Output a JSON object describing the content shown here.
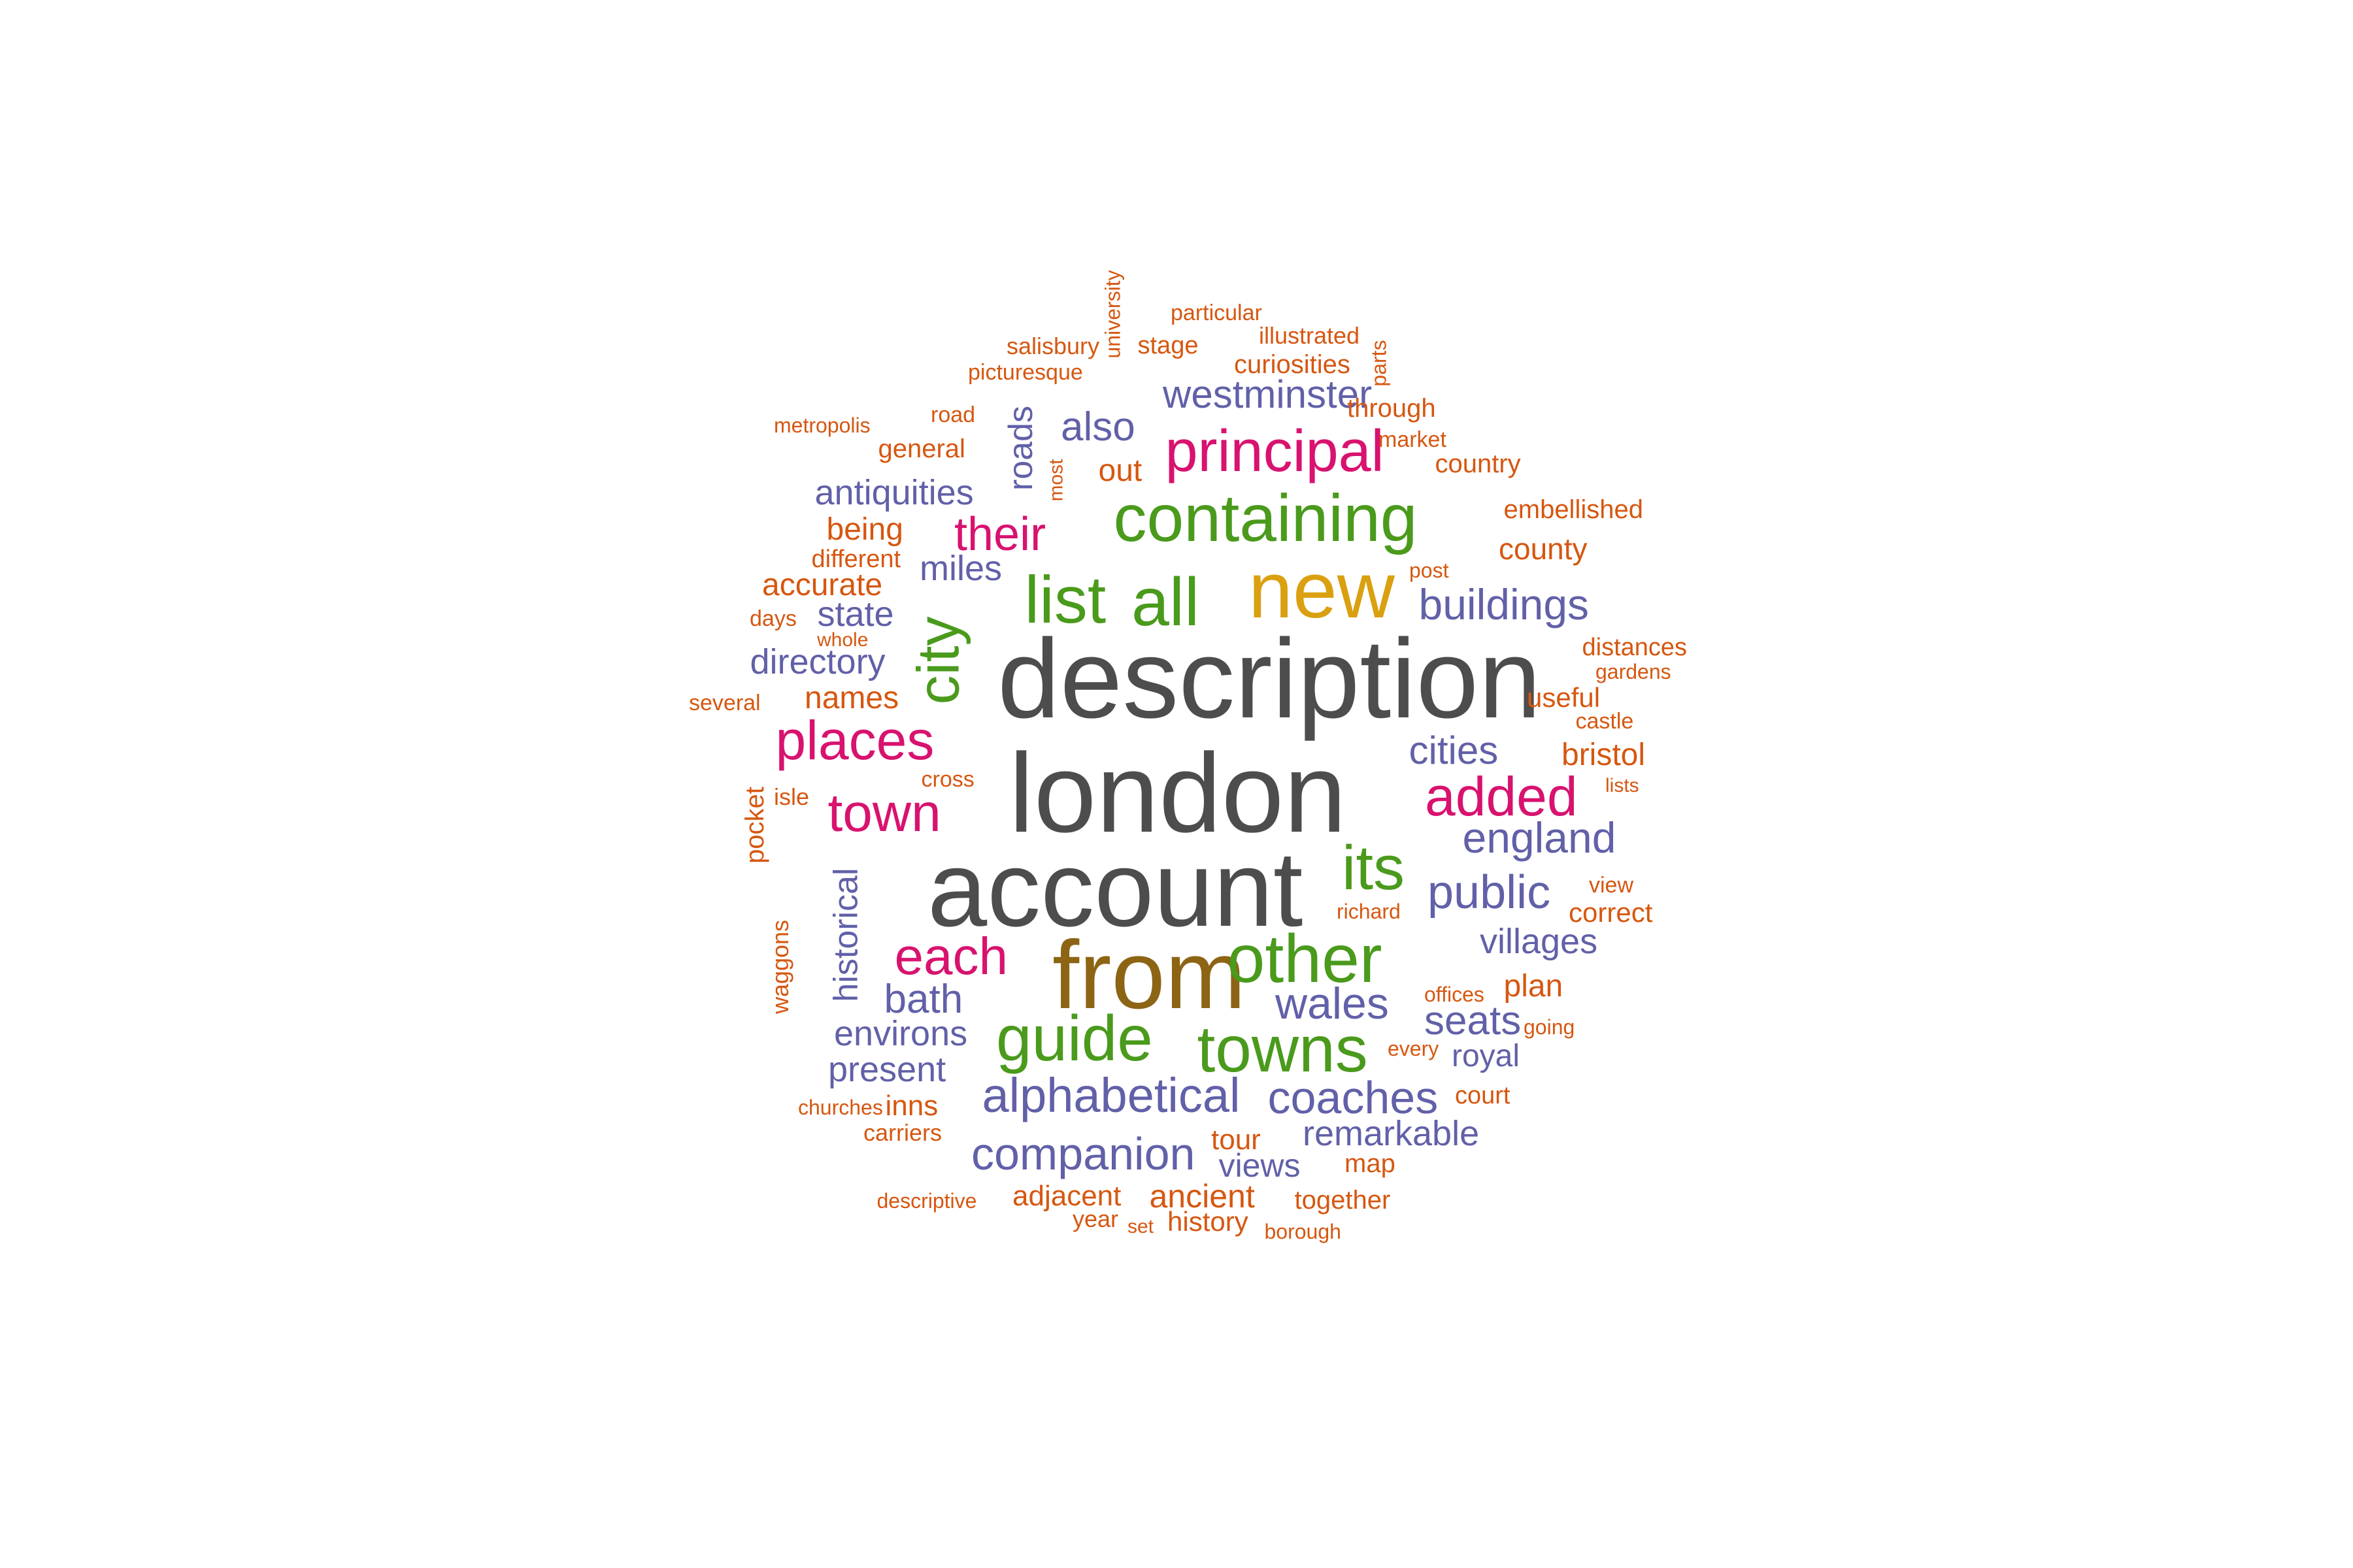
{
  "colors": {
    "gray": "#4d4d4d",
    "brown": "#8c6414",
    "gold": "#daa010",
    "green": "#4a9a1c",
    "magenta": "#d8126f",
    "purple": "#6160a8",
    "orange": "#d65710"
  },
  "words": [
    {
      "text": "description",
      "color": "gray"
    },
    {
      "text": "london",
      "color": "gray"
    },
    {
      "text": "account",
      "color": "gray"
    },
    {
      "text": "from",
      "color": "brown"
    },
    {
      "text": "new",
      "color": "gold"
    },
    {
      "text": "containing",
      "color": "green"
    },
    {
      "text": "list",
      "color": "green"
    },
    {
      "text": "all",
      "color": "green"
    },
    {
      "text": "city",
      "color": "green"
    },
    {
      "text": "its",
      "color": "green"
    },
    {
      "text": "other",
      "color": "green"
    },
    {
      "text": "guide",
      "color": "green"
    },
    {
      "text": "towns",
      "color": "green"
    },
    {
      "text": "principal",
      "color": "magenta"
    },
    {
      "text": "their",
      "color": "magenta"
    },
    {
      "text": "places",
      "color": "magenta"
    },
    {
      "text": "added",
      "color": "magenta"
    },
    {
      "text": "town",
      "color": "magenta"
    },
    {
      "text": "each",
      "color": "magenta"
    },
    {
      "text": "westminster",
      "color": "purple"
    },
    {
      "text": "also",
      "color": "purple"
    },
    {
      "text": "roads",
      "color": "purple"
    },
    {
      "text": "antiquities",
      "color": "purple"
    },
    {
      "text": "miles",
      "color": "purple"
    },
    {
      "text": "state",
      "color": "purple"
    },
    {
      "text": "directory",
      "color": "purple"
    },
    {
      "text": "buildings",
      "color": "purple"
    },
    {
      "text": "cities",
      "color": "purple"
    },
    {
      "text": "england",
      "color": "purple"
    },
    {
      "text": "public",
      "color": "purple"
    },
    {
      "text": "villages",
      "color": "purple"
    },
    {
      "text": "historical",
      "color": "purple"
    },
    {
      "text": "bath",
      "color": "purple"
    },
    {
      "text": "wales",
      "color": "purple"
    },
    {
      "text": "seats",
      "color": "purple"
    },
    {
      "text": "environs",
      "color": "purple"
    },
    {
      "text": "present",
      "color": "purple"
    },
    {
      "text": "royal",
      "color": "purple"
    },
    {
      "text": "alphabetical",
      "color": "purple"
    },
    {
      "text": "coaches",
      "color": "purple"
    },
    {
      "text": "remarkable",
      "color": "purple"
    },
    {
      "text": "companion",
      "color": "purple"
    },
    {
      "text": "views",
      "color": "purple"
    },
    {
      "text": "university",
      "color": "orange"
    },
    {
      "text": "particular",
      "color": "orange"
    },
    {
      "text": "illustrated",
      "color": "orange"
    },
    {
      "text": "salisbury",
      "color": "orange"
    },
    {
      "text": "stage",
      "color": "orange"
    },
    {
      "text": "parts",
      "color": "orange"
    },
    {
      "text": "curiosities",
      "color": "orange"
    },
    {
      "text": "picturesque",
      "color": "orange"
    },
    {
      "text": "through",
      "color": "orange"
    },
    {
      "text": "metropolis",
      "color": "orange"
    },
    {
      "text": "road",
      "color": "orange"
    },
    {
      "text": "market",
      "color": "orange"
    },
    {
      "text": "general",
      "color": "orange"
    },
    {
      "text": "country",
      "color": "orange"
    },
    {
      "text": "most",
      "color": "orange"
    },
    {
      "text": "out",
      "color": "orange"
    },
    {
      "text": "embellished",
      "color": "orange"
    },
    {
      "text": "being",
      "color": "orange"
    },
    {
      "text": "county",
      "color": "orange"
    },
    {
      "text": "different",
      "color": "orange"
    },
    {
      "text": "post",
      "color": "orange"
    },
    {
      "text": "accurate",
      "color": "orange"
    },
    {
      "text": "days",
      "color": "orange"
    },
    {
      "text": "whole",
      "color": "orange"
    },
    {
      "text": "distances",
      "color": "orange"
    },
    {
      "text": "gardens",
      "color": "orange"
    },
    {
      "text": "useful",
      "color": "orange"
    },
    {
      "text": "several",
      "color": "orange"
    },
    {
      "text": "names",
      "color": "orange"
    },
    {
      "text": "castle",
      "color": "orange"
    },
    {
      "text": "bristol",
      "color": "orange"
    },
    {
      "text": "cross",
      "color": "orange"
    },
    {
      "text": "lists",
      "color": "orange"
    },
    {
      "text": "isle",
      "color": "orange"
    },
    {
      "text": "pocket",
      "color": "orange"
    },
    {
      "text": "view",
      "color": "orange"
    },
    {
      "text": "richard",
      "color": "orange"
    },
    {
      "text": "correct",
      "color": "orange"
    },
    {
      "text": "waggons",
      "color": "orange"
    },
    {
      "text": "plan",
      "color": "orange"
    },
    {
      "text": "offices",
      "color": "orange"
    },
    {
      "text": "going",
      "color": "orange"
    },
    {
      "text": "every",
      "color": "orange"
    },
    {
      "text": "court",
      "color": "orange"
    },
    {
      "text": "churches",
      "color": "orange"
    },
    {
      "text": "inns",
      "color": "orange"
    },
    {
      "text": "carriers",
      "color": "orange"
    },
    {
      "text": "tour",
      "color": "orange"
    },
    {
      "text": "map",
      "color": "orange"
    },
    {
      "text": "descriptive",
      "color": "orange"
    },
    {
      "text": "adjacent",
      "color": "orange"
    },
    {
      "text": "ancient",
      "color": "orange"
    },
    {
      "text": "together",
      "color": "orange"
    },
    {
      "text": "year",
      "color": "orange"
    },
    {
      "text": "set",
      "color": "orange"
    },
    {
      "text": "history",
      "color": "orange"
    },
    {
      "text": "borough",
      "color": "orange"
    }
  ]
}
